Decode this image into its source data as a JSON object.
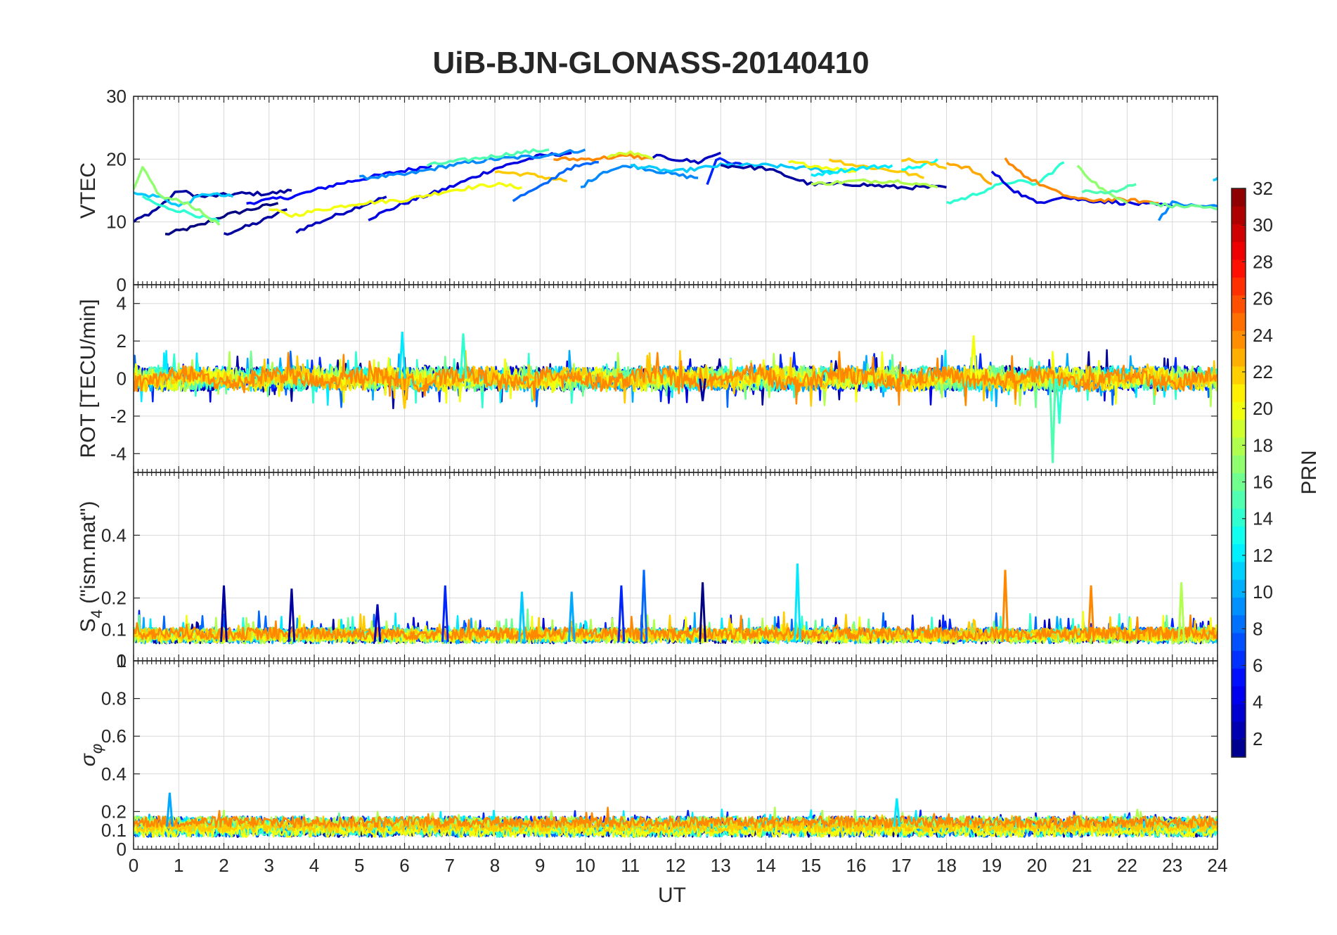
{
  "chart_data": {
    "type": "line",
    "title": "UiB-BJN-GLONASS-20140410",
    "xlabel": "UT",
    "x_range": [
      0,
      24
    ],
    "x_ticks": [
      "0",
      "1",
      "2",
      "3",
      "4",
      "5",
      "6",
      "7",
      "8",
      "9",
      "10",
      "11",
      "12",
      "13",
      "14",
      "15",
      "16",
      "17",
      "18",
      "19",
      "20",
      "21",
      "22",
      "23",
      "24"
    ],
    "grid": true,
    "colormap": "jet",
    "colorbar": {
      "label": "PRN",
      "range": [
        1,
        32
      ],
      "ticks": [
        "2",
        "4",
        "6",
        "8",
        "10",
        "12",
        "14",
        "16",
        "18",
        "20",
        "22",
        "24",
        "26",
        "28",
        "30",
        "32"
      ],
      "placement": "right"
    },
    "panels": [
      {
        "ylabel": "VTEC",
        "ylim": [
          0,
          30
        ],
        "y_ticks": [
          "0",
          "10",
          "20",
          "30"
        ],
        "series": [
          {
            "prn": 1,
            "points": [
              [
                0.7,
                8
              ],
              [
                1.5,
                9.5
              ],
              [
                2,
                11
              ],
              [
                2.6,
                12
              ],
              [
                3.2,
                13
              ]
            ]
          },
          {
            "prn": 2,
            "points": [
              [
                2,
                8
              ],
              [
                2.8,
                10
              ],
              [
                3.4,
                12
              ]
            ]
          },
          {
            "prn": 3,
            "points": [
              [
                3.6,
                8.5
              ],
              [
                4.3,
                10.5
              ],
              [
                5,
                12.5
              ],
              [
                5.6,
                14
              ]
            ]
          },
          {
            "prn": 2,
            "points": [
              [
                0,
                10
              ],
              [
                0.5,
                12
              ],
              [
                1,
                15
              ],
              [
                1.5,
                14
              ],
              [
                2.4,
                14.5
              ],
              [
                3,
                14.5
              ],
              [
                3.5,
                15
              ]
            ]
          },
          {
            "prn": 5,
            "points": [
              [
                2.5,
                13
              ],
              [
                3.5,
                14
              ],
              [
                4.5,
                16
              ],
              [
                5.5,
                17.5
              ],
              [
                6.6,
                19
              ]
            ]
          },
          {
            "prn": 4,
            "points": [
              [
                5.2,
                10.5
              ],
              [
                6,
                13
              ],
              [
                7,
                15.5
              ],
              [
                8,
                18.5
              ],
              [
                9,
                20.5
              ],
              [
                9.7,
                21
              ]
            ]
          },
          {
            "prn": 9,
            "points": [
              [
                5,
                17
              ],
              [
                6,
                17.5
              ],
              [
                7,
                19
              ],
              [
                8,
                20
              ],
              [
                9,
                20.5
              ],
              [
                10,
                21.5
              ]
            ]
          },
          {
            "prn": 11,
            "points": [
              [
                0,
                14.5
              ],
              [
                0.6,
                14
              ],
              [
                1,
                12.5
              ],
              [
                1.6,
                14.5
              ],
              [
                2.2,
                14
              ]
            ]
          },
          {
            "prn": 14,
            "points": [
              [
                0.2,
                14
              ],
              [
                0.6,
                12.5
              ],
              [
                1.2,
                11.5
              ],
              [
                1.9,
                10
              ]
            ]
          },
          {
            "prn": 17,
            "points": [
              [
                0,
                15
              ],
              [
                0.2,
                18.5
              ],
              [
                0.6,
                14
              ],
              [
                1.2,
                13
              ],
              [
                1.9,
                9.5
              ]
            ]
          },
          {
            "prn": 20,
            "points": [
              [
                3,
                12
              ],
              [
                3.5,
                11
              ],
              [
                4.2,
                12
              ],
              [
                5,
                13
              ],
              [
                6,
                13.5
              ],
              [
                7,
                15
              ],
              [
                8,
                16
              ],
              [
                8.6,
                15.5
              ]
            ]
          },
          {
            "prn": 22,
            "points": [
              [
                8,
                18
              ],
              [
                8.8,
                17.5
              ],
              [
                9.6,
                16.5
              ]
            ]
          },
          {
            "prn": 15,
            "points": [
              [
                6.5,
                19
              ],
              [
                7.5,
                20
              ],
              [
                8.5,
                21
              ],
              [
                9.2,
                21.5
              ]
            ]
          },
          {
            "prn": 8,
            "points": [
              [
                8.4,
                13.5
              ],
              [
                9,
                15.5
              ],
              [
                9.6,
                18.5
              ],
              [
                10.3,
                19.5
              ]
            ]
          },
          {
            "prn": 9,
            "points": [
              [
                9.9,
                15.5
              ],
              [
                10.4,
                18
              ],
              [
                11,
                19
              ],
              [
                12,
                17.5
              ],
              [
                12.5,
                17
              ]
            ]
          },
          {
            "prn": 24,
            "points": [
              [
                9.3,
                20
              ],
              [
                10,
                20
              ],
              [
                11,
                20.5
              ],
              [
                11.5,
                20
              ]
            ]
          },
          {
            "prn": 19,
            "points": [
              [
                10.5,
                20.5
              ],
              [
                11,
                21
              ],
              [
                11.5,
                20
              ]
            ]
          },
          {
            "prn": 3,
            "points": [
              [
                11.5,
                20.5
              ],
              [
                12,
                20
              ],
              [
                12.5,
                19.5
              ],
              [
                12.8,
                20.5
              ],
              [
                13,
                21
              ]
            ]
          },
          {
            "prn": 6,
            "points": [
              [
                12.7,
                16
              ],
              [
                12.9,
                20
              ],
              [
                13.5,
                19
              ]
            ]
          },
          {
            "prn": 11,
            "points": [
              [
                11,
                19
              ],
              [
                12,
                18
              ],
              [
                13,
                19
              ],
              [
                14,
                19
              ],
              [
                15,
                18.5
              ],
              [
                15.5,
                18
              ]
            ]
          },
          {
            "prn": 2,
            "points": [
              [
                13,
                19
              ],
              [
                14,
                18.5
              ],
              [
                15,
                16
              ],
              [
                16,
                16
              ],
              [
                17,
                15.5
              ],
              [
                18,
                15.5
              ]
            ]
          },
          {
            "prn": 20,
            "points": [
              [
                14.5,
                19.5
              ],
              [
                15,
                19
              ],
              [
                16,
                18
              ]
            ]
          },
          {
            "prn": 22,
            "points": [
              [
                15.4,
                20
              ],
              [
                16,
                19
              ],
              [
                17,
                18
              ],
              [
                17.5,
                17
              ]
            ]
          },
          {
            "prn": 12,
            "points": [
              [
                15,
                17.5
              ],
              [
                16,
                18.5
              ],
              [
                16.8,
                19
              ]
            ]
          },
          {
            "prn": 18,
            "points": [
              [
                15,
                16
              ],
              [
                16,
                16.5
              ],
              [
                17,
                16.5
              ],
              [
                17.8,
                15.5
              ]
            ]
          },
          {
            "prn": 13,
            "points": [
              [
                17,
                18.5
              ],
              [
                17.5,
                19
              ],
              [
                17.8,
                20
              ]
            ]
          },
          {
            "prn": 22,
            "points": [
              [
                17,
                20
              ],
              [
                17.5,
                19.5
              ],
              [
                18,
                18.5
              ]
            ]
          },
          {
            "prn": 23,
            "points": [
              [
                18,
                19.5
              ],
              [
                18.5,
                18.5
              ],
              [
                19,
                16
              ]
            ]
          },
          {
            "prn": 14,
            "points": [
              [
                18,
                13
              ],
              [
                18.5,
                14
              ],
              [
                19,
                15.5
              ],
              [
                19.5,
                16.5
              ],
              [
                20,
                16
              ],
              [
                20.6,
                19.5
              ]
            ]
          },
          {
            "prn": 4,
            "points": [
              [
                19,
                18
              ],
              [
                19.5,
                15
              ],
              [
                20,
                13
              ],
              [
                20.5,
                14
              ],
              [
                21,
                13.5
              ],
              [
                22,
                13
              ],
              [
                23,
                12.5
              ]
            ]
          },
          {
            "prn": 24,
            "points": [
              [
                19.3,
                20
              ],
              [
                19.8,
                17
              ],
              [
                20.5,
                14.5
              ],
              [
                21,
                13.5
              ],
              [
                22,
                13.5
              ],
              [
                22.7,
                13
              ]
            ]
          },
          {
            "prn": 17,
            "points": [
              [
                20.9,
                19
              ],
              [
                21.3,
                16
              ],
              [
                21.7,
                14
              ],
              [
                22,
                13
              ]
            ]
          },
          {
            "prn": 15,
            "points": [
              [
                21,
                15
              ],
              [
                21.5,
                14.5
              ],
              [
                22.2,
                16
              ]
            ]
          },
          {
            "prn": 9,
            "points": [
              [
                22.7,
                10.5
              ],
              [
                23,
                13
              ],
              [
                23.5,
                12.5
              ],
              [
                24,
                12.5
              ]
            ]
          },
          {
            "prn": 16,
            "points": [
              [
                22.5,
                13
              ],
              [
                23,
                12.5
              ],
              [
                23.6,
                12.5
              ],
              [
                24,
                12
              ]
            ]
          },
          {
            "prn": 11,
            "points": [
              [
                23.9,
                16.5
              ],
              [
                24,
                17
              ]
            ]
          }
        ]
      },
      {
        "ylabel": "ROT [TECU/min]",
        "ylim": [
          -5,
          5
        ],
        "y_ticks": [
          "-4",
          "-2",
          "0",
          "2",
          "4"
        ],
        "spikes": [
          [
            5.95,
            2.5,
            12
          ],
          [
            7.3,
            2.4,
            14
          ],
          [
            18.6,
            2.3,
            20
          ],
          [
            20.35,
            -4.5,
            15
          ],
          [
            20.5,
            -2.4,
            14
          ],
          [
            12.6,
            -1.2,
            2
          ],
          [
            6.0,
            -1.6,
            22
          ]
        ]
      },
      {
        "ylabel": "S4 (\"ism.mat\")",
        "ylim": [
          0,
          0.6
        ],
        "y_ticks": [
          "0",
          "0.1",
          "0.2",
          "0.4"
        ],
        "spikes": [
          [
            2.0,
            0.24,
            2
          ],
          [
            3.5,
            0.23,
            2
          ],
          [
            6.9,
            0.24,
            6
          ],
          [
            10.8,
            0.24,
            6
          ],
          [
            11.3,
            0.29,
            8
          ],
          [
            12.6,
            0.25,
            1
          ],
          [
            14.7,
            0.31,
            12
          ],
          [
            19.3,
            0.29,
            24
          ],
          [
            21.2,
            0.24,
            24
          ],
          [
            23.2,
            0.25,
            18
          ],
          [
            5.4,
            0.18,
            3
          ],
          [
            8.6,
            0.22,
            11
          ],
          [
            9.7,
            0.22,
            10
          ]
        ]
      },
      {
        "ylabel": "σ_φ",
        "ylim": [
          0,
          1
        ],
        "y_ticks": [
          "0",
          "0.1",
          "0.2",
          "0.4",
          "0.6",
          "0.8",
          "1"
        ],
        "spikes": [
          [
            0.8,
            0.3,
            10
          ],
          [
            16.9,
            0.27,
            12
          ]
        ]
      }
    ]
  }
}
